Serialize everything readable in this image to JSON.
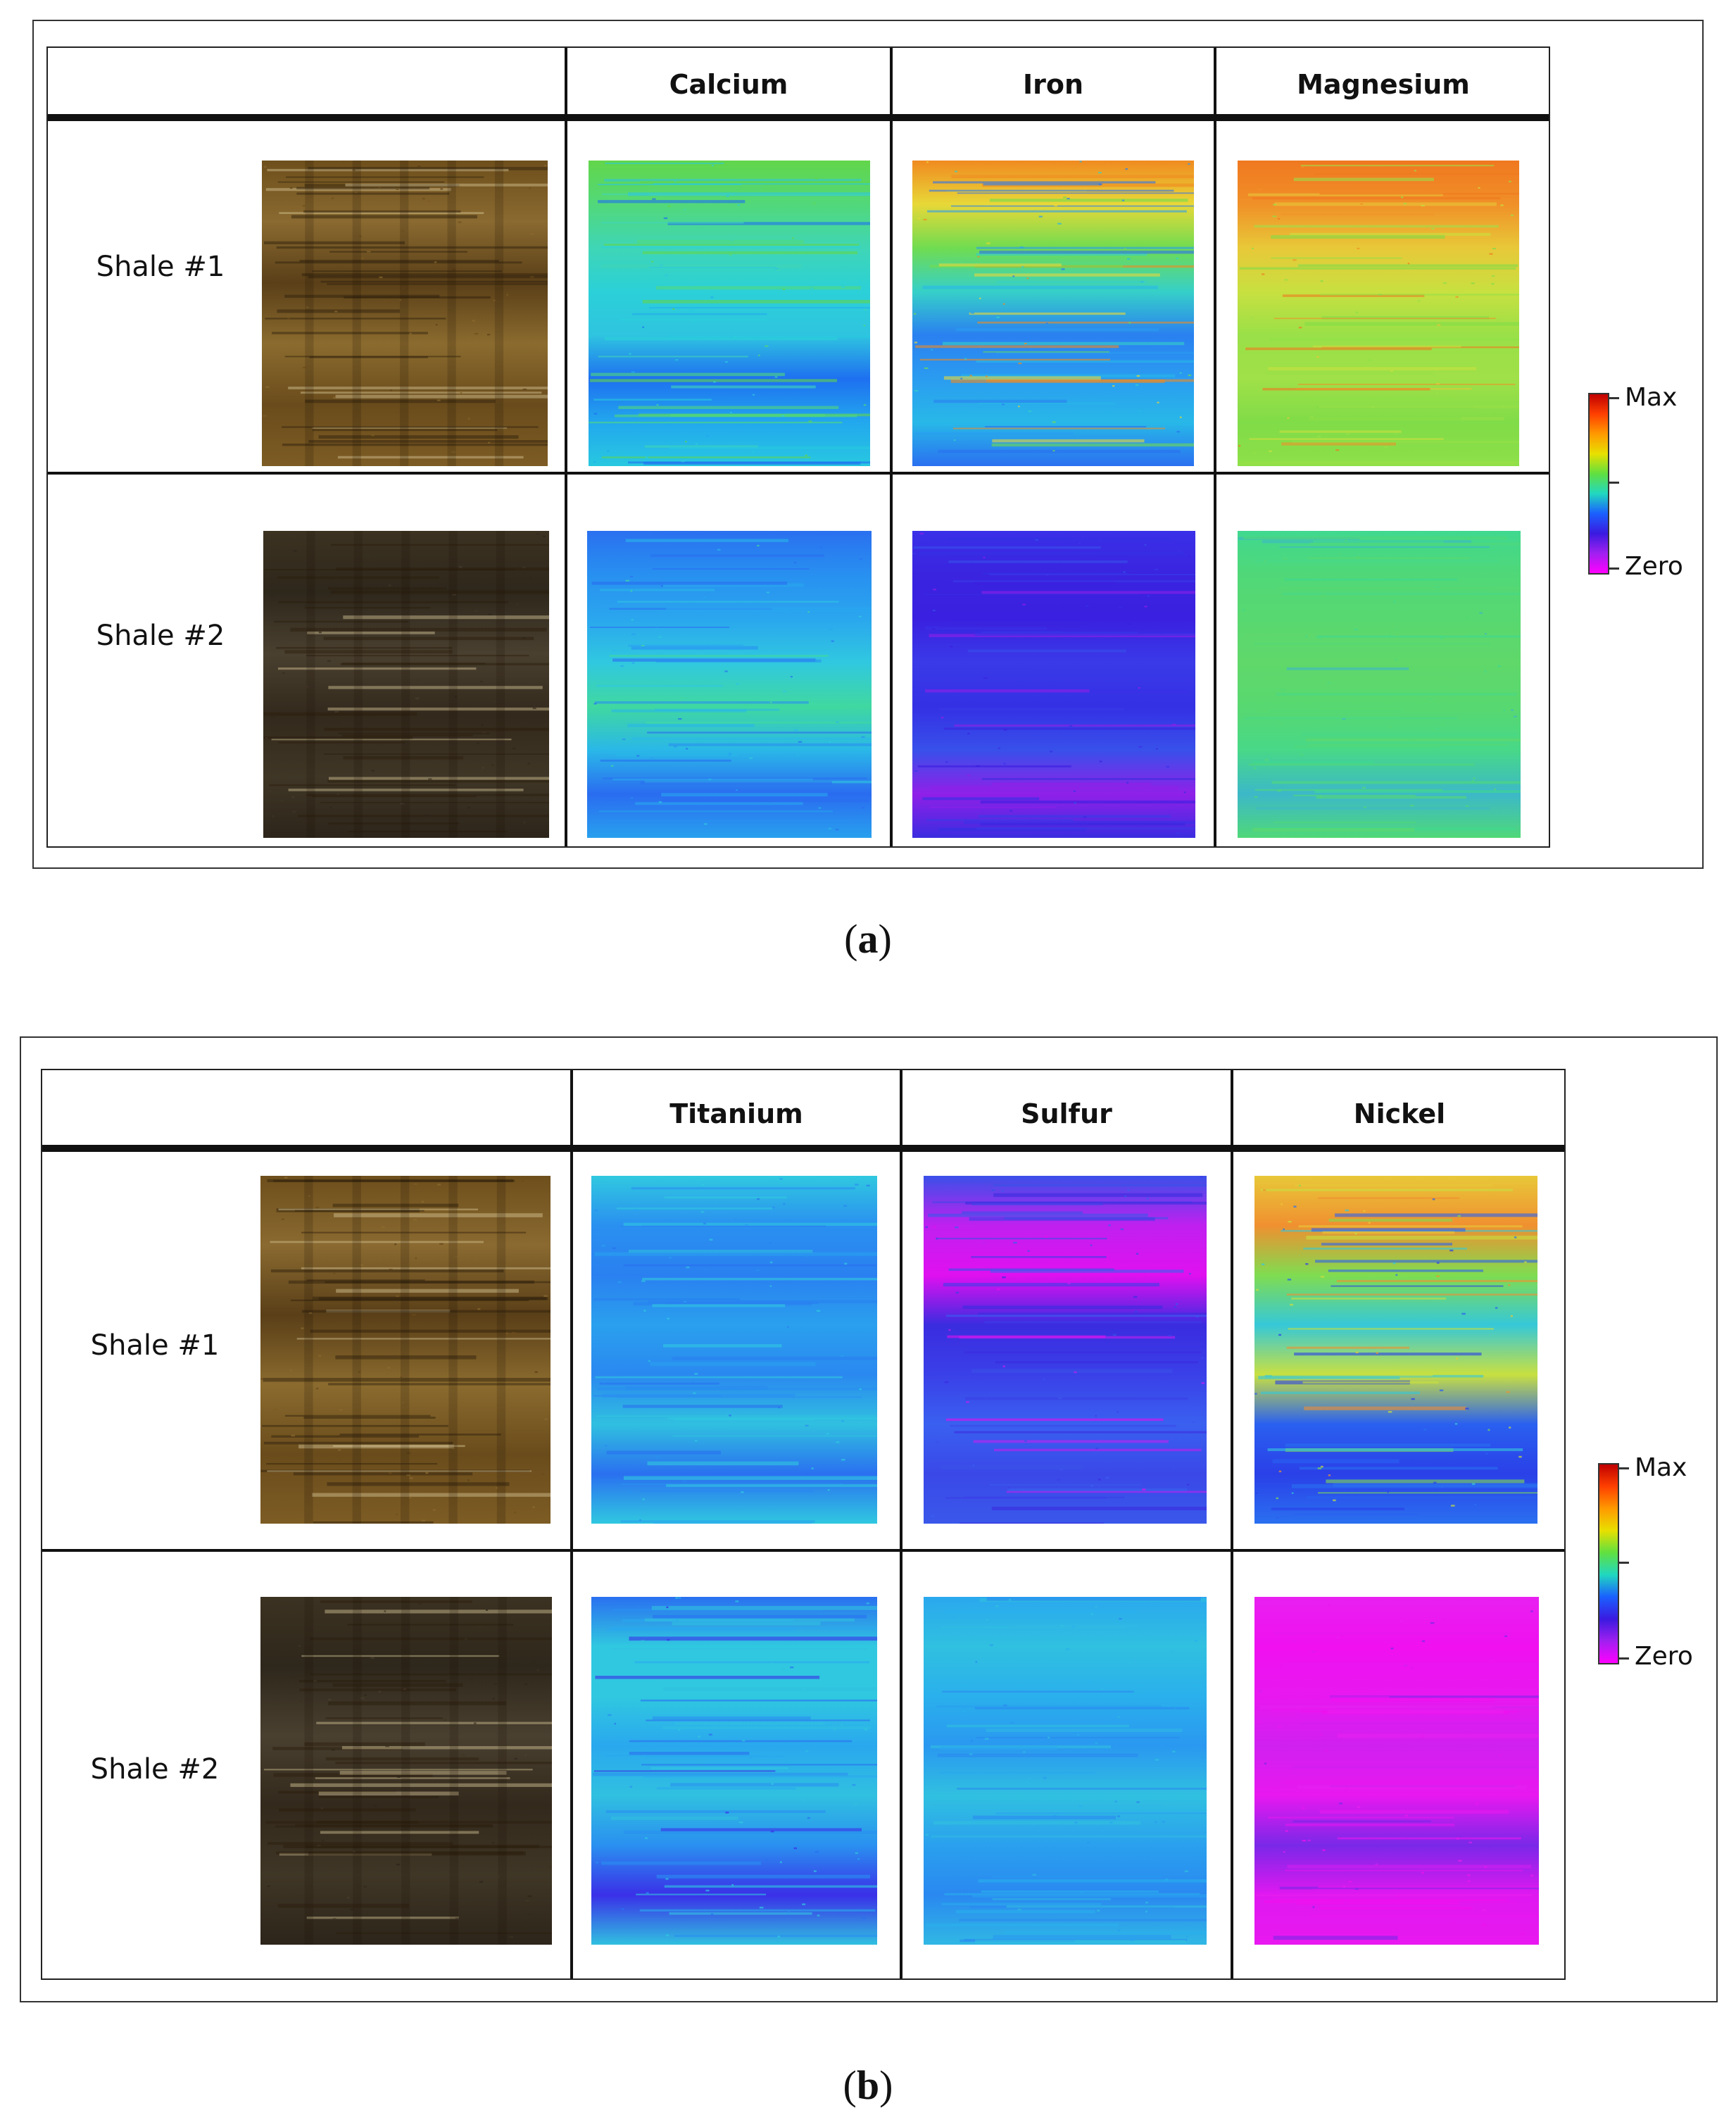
{
  "panels": [
    {
      "id": "a",
      "caption_letter": "a",
      "column_headers": [
        "Calcium",
        "Iron",
        "Magnesium"
      ],
      "rows": [
        {
          "label": "Shale #1",
          "photo": "shale-1",
          "maps": [
            "calcium-shale1",
            "iron-shale1",
            "magnesium-shale1"
          ]
        },
        {
          "label": "Shale #2",
          "photo": "shale-2",
          "maps": [
            "calcium-shale2",
            "iron-shale2",
            "magnesium-shale2"
          ]
        }
      ],
      "colorbar": {
        "max_label": "Max",
        "zero_label": "Zero"
      }
    },
    {
      "id": "b",
      "caption_letter": "b",
      "column_headers": [
        "Titanium",
        "Sulfur",
        "Nickel"
      ],
      "rows": [
        {
          "label": "Shale #1",
          "photo": "shale-1",
          "maps": [
            "titanium-shale1",
            "sulfur-shale1",
            "nickel-shale1"
          ]
        },
        {
          "label": "Shale #2",
          "photo": "shale-2",
          "maps": [
            "titanium-shale2",
            "sulfur-shale2",
            "nickel-shale2"
          ]
        }
      ],
      "colorbar": {
        "max_label": "Max",
        "zero_label": "Zero"
      }
    }
  ],
  "colors": {
    "shale1_photo": "#7a5a20",
    "shale2_photo": "#3a3020"
  }
}
